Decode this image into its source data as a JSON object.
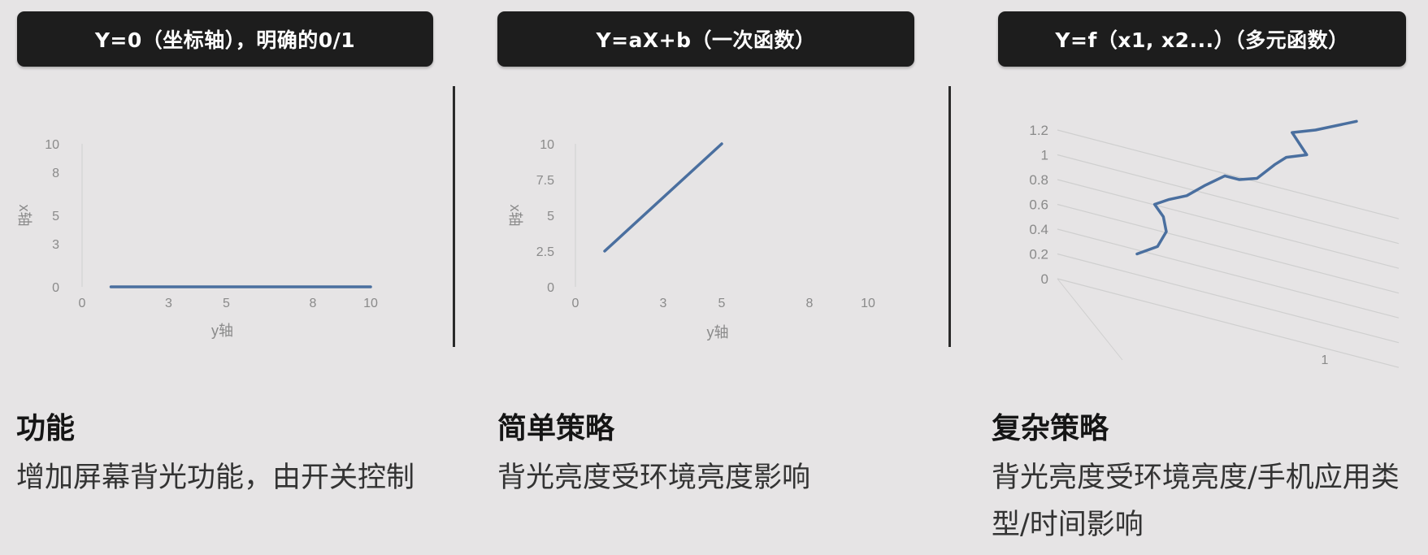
{
  "headers": [
    "Y=0（坐标轴），明确的0/1",
    "Y=aX+b（一次函数）",
    "Y=f（x1, x2...）（多元函数）"
  ],
  "sections": [
    {
      "title": "功能",
      "body": "增加屏幕背光功能，由开关控制"
    },
    {
      "title": "简单策略",
      "body": "背光亮度受环境亮度影响"
    },
    {
      "title": "复杂策略",
      "body": "背光亮度受环境亮度/手机应用类型/时间影响"
    }
  ],
  "colors": {
    "line": "#4a6f9f",
    "axis_text": "#8a8a8a",
    "grid": "#cfcfcf",
    "pill_bg": "#1d1d1d"
  },
  "chart_data": [
    {
      "type": "line",
      "xlabel": "y轴",
      "ylabel": "x轴",
      "xticks": [
        "0",
        "3",
        "5",
        "8",
        "10"
      ],
      "yticks": [
        "0",
        "3",
        "5",
        "8",
        "10"
      ],
      "xlim": [
        0,
        10
      ],
      "ylim": [
        0,
        10
      ],
      "x": [
        1,
        10
      ],
      "y": [
        0,
        0
      ]
    },
    {
      "type": "line",
      "xlabel": "y轴",
      "ylabel": "x轴",
      "xticks": [
        "0",
        "3",
        "5",
        "8",
        "10"
      ],
      "yticks": [
        "0",
        "2.5",
        "5",
        "7.5",
        "10"
      ],
      "xlim": [
        0,
        10
      ],
      "ylim": [
        0,
        10
      ],
      "x": [
        1,
        5
      ],
      "y": [
        2.5,
        10
      ]
    },
    {
      "type": "line",
      "ylim": [
        0,
        1.2
      ],
      "yticks": [
        "0",
        "0.2",
        "0.4",
        "0.6",
        "0.8",
        "1",
        "1.2"
      ],
      "xticks": [
        "1"
      ],
      "grid": true,
      "x": [
        0.05,
        0.12,
        0.15,
        0.14,
        0.11,
        0.16,
        0.22,
        0.28,
        0.35,
        0.4,
        0.46,
        0.52,
        0.56,
        0.63,
        0.58,
        0.66,
        0.8
      ],
      "y": [
        0.2,
        0.26,
        0.38,
        0.5,
        0.6,
        0.64,
        0.67,
        0.75,
        0.83,
        0.8,
        0.81,
        0.92,
        0.98,
        1.0,
        1.18,
        1.2,
        1.27
      ]
    }
  ]
}
